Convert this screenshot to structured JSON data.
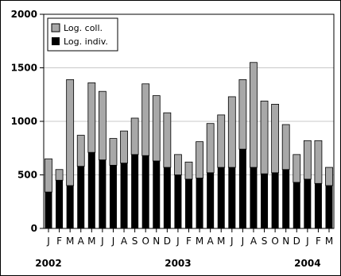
{
  "chart_data": {
    "type": "bar",
    "stacked": true,
    "title": "",
    "xlabel": "",
    "ylabel": "",
    "ylim": [
      0,
      2000
    ],
    "yticks": [
      0,
      500,
      1000,
      1500,
      2000
    ],
    "grid": "horizontal",
    "legend_placement": "top-left",
    "categories": [
      "J",
      "F",
      "M",
      "A",
      "M",
      "J",
      "J",
      "A",
      "S",
      "O",
      "N",
      "D",
      "J",
      "F",
      "M",
      "A",
      "M",
      "J",
      "J",
      "A",
      "S",
      "O",
      "N",
      "D",
      "J",
      "F",
      "M"
    ],
    "year_labels": [
      {
        "label": "2002",
        "category_index": 0
      },
      {
        "label": "2003",
        "category_index": 12
      },
      {
        "label": "2004",
        "category_index": 24
      }
    ],
    "series": [
      {
        "name": "Log. indiv.",
        "color": "#000000",
        "values": [
          340,
          450,
          400,
          580,
          710,
          640,
          590,
          610,
          690,
          680,
          630,
          570,
          500,
          460,
          470,
          520,
          570,
          570,
          740,
          570,
          510,
          520,
          550,
          430,
          460,
          420,
          400
        ]
      },
      {
        "name": "Log. coll.",
        "color": "#a8a8a8",
        "values": [
          310,
          100,
          990,
          290,
          650,
          640,
          250,
          300,
          340,
          670,
          610,
          510,
          190,
          160,
          340,
          460,
          490,
          660,
          650,
          980,
          680,
          640,
          420,
          260,
          360,
          400,
          170
        ]
      }
    ]
  }
}
